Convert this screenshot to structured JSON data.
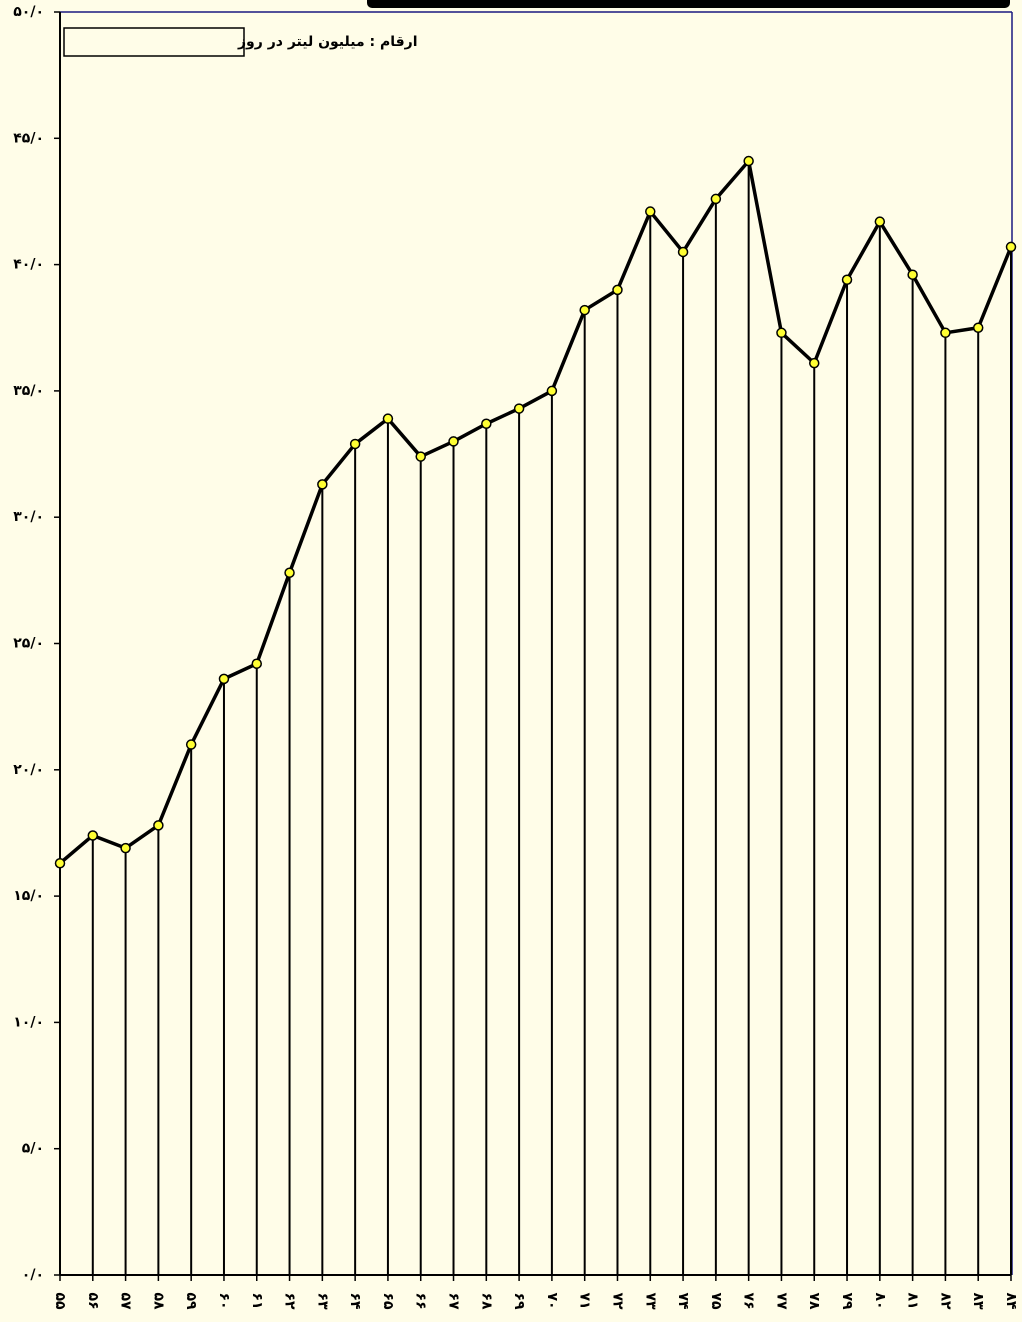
{
  "chart_data": {
    "type": "line",
    "annotation": "ارقام : میلیون لیتر  در روز",
    "categories": [
      "۵۵",
      "۵۶",
      "۵۷",
      "۵۸",
      "۵۹",
      "۶۰",
      "۶۱",
      "۶۲",
      "۶۳",
      "۶۴",
      "۶۵",
      "۶۶",
      "۶۷",
      "۶۸",
      "۶۹",
      "۷۰",
      "۷۱",
      "۷۲",
      "۷۳",
      "۷۴",
      "۷۵",
      "۷۶",
      "۷۷",
      "۷۸",
      "۷۹",
      "۸۰",
      "۸۱",
      "۸۲",
      "۸۳",
      "۸۴"
    ],
    "values": [
      16.3,
      17.4,
      16.9,
      17.8,
      21.0,
      23.6,
      24.2,
      27.8,
      31.3,
      32.9,
      33.9,
      32.4,
      33.0,
      33.7,
      34.3,
      35.0,
      38.2,
      39.0,
      42.1,
      40.5,
      42.6,
      44.1,
      37.3,
      36.1,
      39.4,
      41.7,
      39.6,
      37.3,
      37.5,
      40.7
    ],
    "color": "#000000",
    "marker_color": "#ffff33",
    "drop_lines": true,
    "ylim": [
      0,
      50
    ],
    "yticks": [
      {
        "value": 0,
        "label": "۰/۰"
      },
      {
        "value": 5,
        "label": "۵/۰"
      },
      {
        "value": 10,
        "label": "۱۰/۰"
      },
      {
        "value": 15,
        "label": "۱۵/۰"
      },
      {
        "value": 20,
        "label": "۲۰/۰"
      },
      {
        "value": 25,
        "label": "۲۵/۰"
      },
      {
        "value": 30,
        "label": "۳۰/۰"
      },
      {
        "value": 35,
        "label": "۳۵/۰"
      },
      {
        "value": 40,
        "label": "۴۰/۰"
      },
      {
        "value": 45,
        "label": "۴۵/۰"
      },
      {
        "value": 50,
        "label": "۵۰/۰"
      }
    ]
  }
}
